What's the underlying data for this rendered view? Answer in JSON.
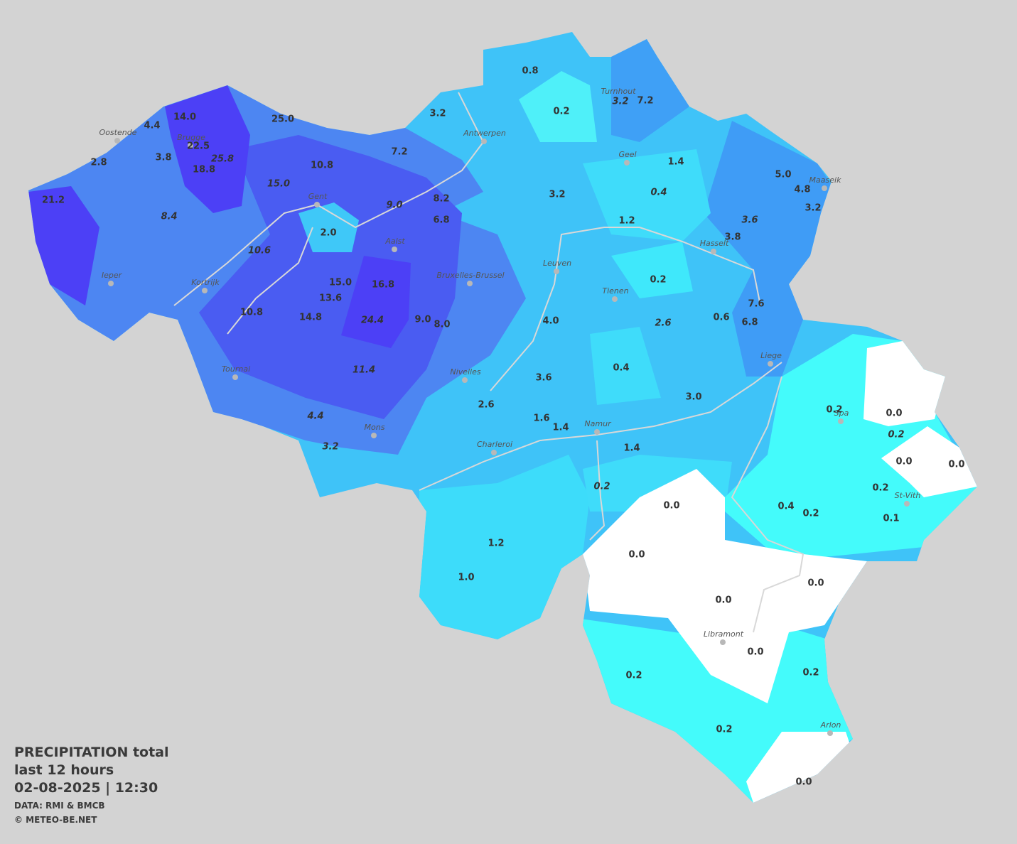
{
  "caption": {
    "title": "PRECIPITATION total",
    "period": "last 12 hours",
    "datetime": "02-08-2025  |  12:30",
    "source": "DATA: RMI & BMCB",
    "credit": "© METEO-BE.NET"
  },
  "cities": [
    "Oostende",
    "Brugge",
    "Antwerpen",
    "Turnhout",
    "Geel",
    "Maaseik",
    "Gent",
    "Aalst",
    "Hasselt",
    "Leuven",
    "Bruxelles-Brussel",
    "Ieper",
    "Kortrijk",
    "Tienen",
    "Liege",
    "Tournai",
    "Nivelles",
    "Spa",
    "Mons",
    "Namur",
    "Charleroi",
    "St-Vith",
    "Libramont",
    "Arlon"
  ],
  "values": [
    {
      "label": "0.8",
      "italic": false
    },
    {
      "label": "0.2",
      "italic": false
    },
    {
      "label": "3.2",
      "italic": true
    },
    {
      "label": "7.2",
      "italic": false
    },
    {
      "label": "14.0",
      "italic": false
    },
    {
      "label": "4.4",
      "italic": false
    },
    {
      "label": "25.0",
      "italic": false
    },
    {
      "label": "3.2",
      "italic": false
    },
    {
      "label": "22.5",
      "italic": false
    },
    {
      "label": "25.8",
      "italic": true
    },
    {
      "label": "3.8",
      "italic": false
    },
    {
      "label": "2.8",
      "italic": false
    },
    {
      "label": "18.8",
      "italic": false
    },
    {
      "label": "10.8",
      "italic": false
    },
    {
      "label": "7.2",
      "italic": false
    },
    {
      "label": "1.4",
      "italic": false
    },
    {
      "label": "5.0",
      "italic": false
    },
    {
      "label": "4.8",
      "italic": false
    },
    {
      "label": "3.2",
      "italic": false
    },
    {
      "label": "15.0",
      "italic": true
    },
    {
      "label": "8.2",
      "italic": false
    },
    {
      "label": "9.0",
      "italic": true
    },
    {
      "label": "3.2",
      "italic": false
    },
    {
      "label": "0.4",
      "italic": true
    },
    {
      "label": "21.2",
      "italic": false
    },
    {
      "label": "8.4",
      "italic": true
    },
    {
      "label": "6.8",
      "italic": false
    },
    {
      "label": "1.2",
      "italic": false
    },
    {
      "label": "3.6",
      "italic": true
    },
    {
      "label": "3.8",
      "italic": false
    },
    {
      "label": "2.0",
      "italic": false
    },
    {
      "label": "10.6",
      "italic": true
    },
    {
      "label": "15.0",
      "italic": false
    },
    {
      "label": "16.8",
      "italic": false
    },
    {
      "label": "0.2",
      "italic": false
    },
    {
      "label": "13.6",
      "italic": false
    },
    {
      "label": "7.6",
      "italic": false
    },
    {
      "label": "10.8",
      "italic": false
    },
    {
      "label": "14.8",
      "italic": false
    },
    {
      "label": "24.4",
      "italic": true
    },
    {
      "label": "9.0",
      "italic": false
    },
    {
      "label": "8.0",
      "italic": false
    },
    {
      "label": "4.0",
      "italic": false
    },
    {
      "label": "2.6",
      "italic": true
    },
    {
      "label": "0.6",
      "italic": false
    },
    {
      "label": "6.8",
      "italic": false
    },
    {
      "label": "11.4",
      "italic": true
    },
    {
      "label": "0.4",
      "italic": false
    },
    {
      "label": "3.6",
      "italic": false
    },
    {
      "label": "3.0",
      "italic": false
    },
    {
      "label": "2.6",
      "italic": false
    },
    {
      "label": "0.2",
      "italic": false
    },
    {
      "label": "0.0",
      "italic": false
    },
    {
      "label": "4.4",
      "italic": true
    },
    {
      "label": "1.6",
      "italic": false
    },
    {
      "label": "1.4",
      "italic": false
    },
    {
      "label": "0.2",
      "italic": true
    },
    {
      "label": "3.2",
      "italic": true
    },
    {
      "label": "1.4",
      "italic": false
    },
    {
      "label": "0.0",
      "italic": false
    },
    {
      "label": "0.0",
      "italic": false
    },
    {
      "label": "0.2",
      "italic": true
    },
    {
      "label": "0.2",
      "italic": false
    },
    {
      "label": "0.0",
      "italic": false
    },
    {
      "label": "0.4",
      "italic": false
    },
    {
      "label": "0.2",
      "italic": false
    },
    {
      "label": "0.1",
      "italic": false
    },
    {
      "label": "1.2",
      "italic": false
    },
    {
      "label": "0.0",
      "italic": false
    },
    {
      "label": "1.0",
      "italic": false
    },
    {
      "label": "0.0",
      "italic": false
    },
    {
      "label": "0.0",
      "italic": false
    },
    {
      "label": "0.0",
      "italic": false
    },
    {
      "label": "0.2",
      "italic": false
    },
    {
      "label": "0.2",
      "italic": false
    },
    {
      "label": "0.2",
      "italic": false
    },
    {
      "label": "0.0",
      "italic": false
    }
  ]
}
